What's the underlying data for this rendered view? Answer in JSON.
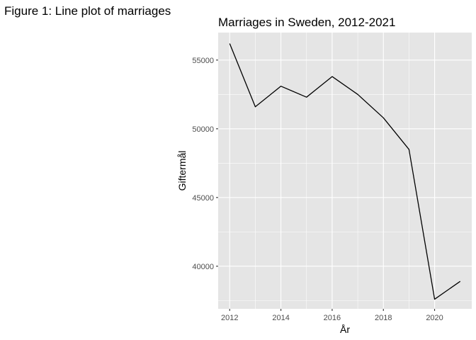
{
  "figure_caption": "Figure 1: Line plot of marriages",
  "chart_data": {
    "type": "line",
    "title": "Marriages in Sweden, 2012-2021",
    "xlabel": "År",
    "ylabel": "Giftermål",
    "x": [
      2012,
      2013,
      2014,
      2015,
      2016,
      2017,
      2018,
      2019,
      2020,
      2021
    ],
    "series": [
      {
        "values": [
          56200,
          51600,
          53100,
          52300,
          53800,
          52500,
          50800,
          48500,
          37600,
          38900
        ]
      }
    ],
    "xlim": [
      2011.55,
      2021.45
    ],
    "ylim": [
      36900,
      57000
    ],
    "xticks": [
      2012,
      2014,
      2016,
      2018,
      2020
    ],
    "xtick_labels": [
      "2012",
      "2014",
      "2016",
      "2018",
      "2020"
    ],
    "yticks": [
      40000,
      45000,
      50000,
      55000
    ],
    "ytick_labels": [
      "40000",
      "45000",
      "50000",
      "55000"
    ],
    "grid": true,
    "line_color": "#000000",
    "panel_color": "#e5e5e5"
  }
}
